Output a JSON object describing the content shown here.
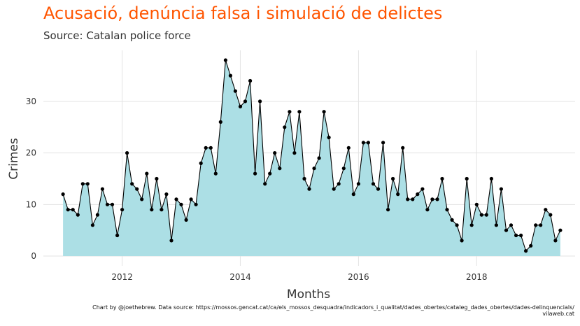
{
  "title": "Acusació, denúncia falsa i simulació de delictes",
  "subtitle": "Source: Catalan police force",
  "caption": {
    "line1": "Chart by @joethebrew. Data source: https://mossos.gencat.cat/ca/els_mossos_desquadra/indicadors_i_qualitat/dades_obertes/cataleg_dades_obertes/dades-delinquencials/",
    "line2": "vilaweb.cat"
  },
  "colors": {
    "title": "#ff5500",
    "area_fill": "#acdfe5",
    "line": "#000000",
    "grid": "#e3e3e3"
  },
  "chart_data": {
    "type": "area",
    "xlabel": "Months",
    "ylabel": "Crimes",
    "x_start": "2011-01",
    "x_step": "1 month",
    "xlim": [
      "2010-09",
      "2019-09"
    ],
    "ylim": [
      -1.9,
      39.9
    ],
    "x_ticks": [
      "2012",
      "2014",
      "2016",
      "2018"
    ],
    "y_ticks": [
      0,
      10,
      20,
      30
    ],
    "grid": true,
    "values": [
      12,
      9,
      9,
      8,
      14,
      14,
      6,
      8,
      13,
      10,
      10,
      4,
      9,
      20,
      14,
      13,
      11,
      16,
      9,
      15,
      9,
      12,
      3,
      11,
      10,
      7,
      11,
      10,
      18,
      21,
      21,
      16,
      26,
      38,
      35,
      32,
      29,
      30,
      34,
      16,
      30,
      14,
      16,
      20,
      17,
      25,
      28,
      20,
      28,
      15,
      13,
      17,
      19,
      28,
      23,
      13,
      14,
      17,
      21,
      12,
      14,
      22,
      22,
      14,
      13,
      22,
      9,
      15,
      12,
      21,
      11,
      11,
      12,
      13,
      9,
      11,
      11,
      15,
      9,
      7,
      6,
      3,
      15,
      6,
      10,
      8,
      8,
      15,
      6,
      13,
      5,
      6,
      4,
      4,
      1,
      2,
      6,
      6,
      9,
      8,
      3,
      5
    ]
  }
}
